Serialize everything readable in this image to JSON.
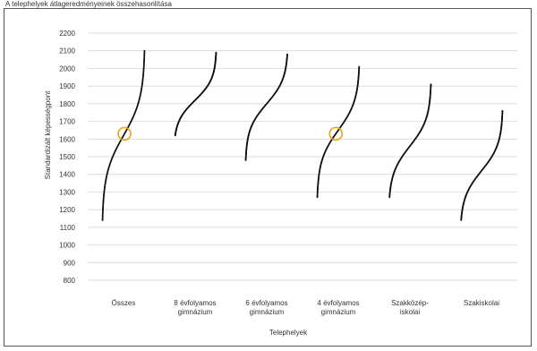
{
  "page": {
    "title": "A telephelyek átlageredményeinek összehasonlítása"
  },
  "chart_data": {
    "type": "scatter",
    "title": "",
    "xlabel": "Telephelyek",
    "ylabel": "Standardizált képességpont",
    "ylim": [
      800,
      2200
    ],
    "yticks": [
      800,
      900,
      1000,
      1100,
      1200,
      1300,
      1400,
      1500,
      1600,
      1700,
      1800,
      1900,
      2000,
      2100,
      2200
    ],
    "grid": true,
    "categories": [
      [
        "Összes"
      ],
      [
        "8 évfolyamos",
        "gimnázium"
      ],
      [
        "6 évfolyamos",
        "gimnázium"
      ],
      [
        "4 évfolyamos",
        "gimnázium"
      ],
      [
        "Szakközép-",
        "iskolai"
      ],
      [
        "Szakiskolai"
      ]
    ],
    "series": [
      {
        "category": "Összes",
        "min": 1140,
        "max": 2100,
        "center": 1620
      },
      {
        "category": "8 évfolyamos gimnázium",
        "min": 1620,
        "max": 2090,
        "center": 1820
      },
      {
        "category": "6 évfolyamos gimnázium",
        "min": 1480,
        "max": 2080,
        "center": 1800
      },
      {
        "category": "4 évfolyamos gimnázium",
        "min": 1270,
        "max": 2010,
        "center": 1650
      },
      {
        "category": "Szakközép-iskolai",
        "min": 1270,
        "max": 1910,
        "center": 1560
      },
      {
        "category": "Szakiskolai",
        "min": 1140,
        "max": 1760,
        "center": 1420
      }
    ],
    "highlights": [
      {
        "category": "Összes",
        "value": 1630,
        "color": "#e8a317"
      },
      {
        "category": "4 évfolyamos gimnázium",
        "value": 1630,
        "color": "#e8a317"
      }
    ],
    "colors": {
      "points": "#111111",
      "grid": "#cfcfcf",
      "highlight": "#e8a317"
    }
  }
}
